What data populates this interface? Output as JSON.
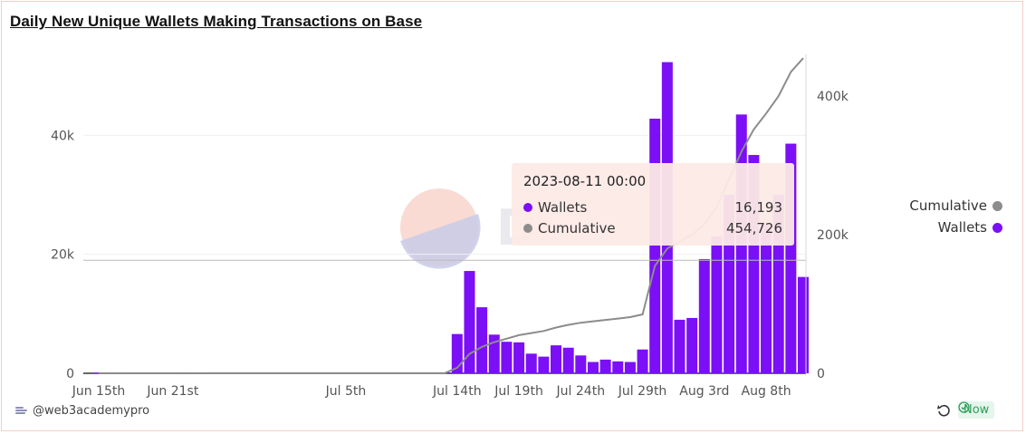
{
  "title": "Daily New Unique Wallets Making Transactions on Base",
  "footer": {
    "username": "@web3academypro",
    "status_label": "Now"
  },
  "legend": [
    {
      "label": "Cumulative",
      "color": "#8c8c8c"
    },
    {
      "label": "Wallets",
      "color": "#7b0ff5"
    }
  ],
  "tooltip": {
    "date": "2023-08-11 00:00",
    "wallets_label": "Wallets",
    "wallets_value": "16,193",
    "cumulative_label": "Cumulative",
    "cumulative_value": "454,726"
  },
  "chart_data": {
    "type": "bar",
    "title": "Daily New Unique Wallets Making Transactions on Base",
    "x_tick_labels": [
      "Jun 15th",
      "Jun 21st",
      "Jul 5th",
      "Jul 14th",
      "Jul 19th",
      "Jul 24th",
      "Jul 29th",
      "Aug 3rd",
      "Aug 8th"
    ],
    "x_tick_dates": [
      "2023-06-15",
      "2023-06-21",
      "2023-07-05",
      "2023-07-14",
      "2023-07-19",
      "2023-07-24",
      "2023-07-29",
      "2023-08-03",
      "2023-08-08"
    ],
    "y_left": {
      "ticks": [
        0,
        20000,
        40000
      ],
      "tick_labels": [
        "0",
        "20k",
        "40k"
      ],
      "ylim": [
        0,
        53000
      ]
    },
    "y_right": {
      "ticks": [
        0,
        200000,
        400000
      ],
      "tick_labels": [
        "0",
        "200k",
        "400k"
      ],
      "ylim": [
        0,
        455000
      ]
    },
    "series": [
      {
        "name": "Wallets",
        "axis": "left",
        "type": "bar",
        "color": "#7b0ff5",
        "x": [
          "2023-06-15",
          "2023-07-13",
          "2023-07-14",
          "2023-07-15",
          "2023-07-16",
          "2023-07-17",
          "2023-07-18",
          "2023-07-19",
          "2023-07-20",
          "2023-07-21",
          "2023-07-22",
          "2023-07-23",
          "2023-07-24",
          "2023-07-25",
          "2023-07-26",
          "2023-07-27",
          "2023-07-28",
          "2023-07-29",
          "2023-07-30",
          "2023-07-31",
          "2023-08-01",
          "2023-08-02",
          "2023-08-03",
          "2023-08-04",
          "2023-08-05",
          "2023-08-06",
          "2023-08-07",
          "2023-08-08",
          "2023-08-09",
          "2023-08-10",
          "2023-08-11"
        ],
        "values": [
          100,
          150,
          6600,
          17200,
          11100,
          6500,
          5300,
          5200,
          3300,
          2800,
          4700,
          4300,
          3000,
          1900,
          2300,
          2000,
          1900,
          4000,
          42800,
          52300,
          9000,
          9300,
          19200,
          23000,
          30000,
          43500,
          36700,
          25000,
          30000,
          38600,
          16193
        ]
      },
      {
        "name": "Cumulative",
        "axis": "right",
        "type": "line",
        "color": "#8c8c8c",
        "x": [
          "2023-06-15",
          "2023-07-13",
          "2023-07-14",
          "2023-07-15",
          "2023-07-16",
          "2023-07-17",
          "2023-07-18",
          "2023-07-19",
          "2023-07-20",
          "2023-07-21",
          "2023-07-22",
          "2023-07-23",
          "2023-07-24",
          "2023-07-25",
          "2023-07-26",
          "2023-07-27",
          "2023-07-28",
          "2023-07-29",
          "2023-07-30",
          "2023-07-31",
          "2023-08-01",
          "2023-08-02",
          "2023-08-03",
          "2023-08-04",
          "2023-08-05",
          "2023-08-06",
          "2023-08-07",
          "2023-08-08",
          "2023-08-09",
          "2023-08-10",
          "2023-08-11"
        ],
        "values": [
          0,
          300,
          8000,
          28000,
          38000,
          45000,
          50000,
          55000,
          58000,
          61000,
          66000,
          70000,
          73000,
          75000,
          77000,
          79000,
          81000,
          85000,
          155000,
          180000,
          190000,
          200000,
          215000,
          240000,
          280000,
          320000,
          352000,
          375000,
          400000,
          435000,
          454726
        ]
      }
    ],
    "legend_position": "right",
    "grid": true,
    "crosshair_y": 19000
  }
}
